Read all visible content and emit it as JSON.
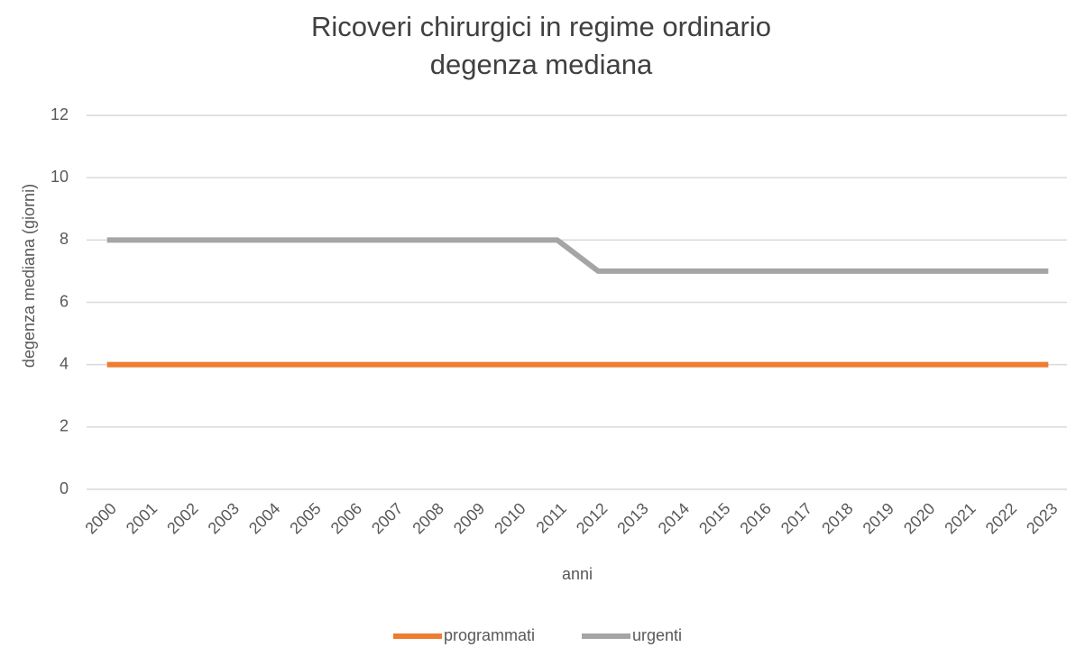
{
  "chart_data": {
    "type": "line",
    "title": "Ricoveri chirurgici in regime ordinario",
    "subtitle": "degenza mediana",
    "x_label": "anni",
    "y_label": "degenza mediana (giorni)",
    "categories": [
      "2000",
      "2001",
      "2002",
      "2003",
      "2004",
      "2005",
      "2006",
      "2007",
      "2008",
      "2009",
      "2010",
      "2011",
      "2012",
      "2013",
      "2014",
      "2015",
      "2016",
      "2017",
      "2018",
      "2019",
      "2020",
      "2021",
      "2022",
      "2023"
    ],
    "series": [
      {
        "name": "programmati",
        "color": "#ed7d31",
        "values": [
          4,
          4,
          4,
          4,
          4,
          4,
          4,
          4,
          4,
          4,
          4,
          4,
          4,
          4,
          4,
          4,
          4,
          4,
          4,
          4,
          4,
          4,
          4,
          4
        ]
      },
      {
        "name": "urgenti",
        "color": "#a5a5a5",
        "values": [
          8,
          8,
          8,
          8,
          8,
          8,
          8,
          8,
          8,
          8,
          8,
          8,
          7,
          7,
          7,
          7,
          7,
          7,
          7,
          7,
          7,
          7,
          7,
          7
        ]
      }
    ],
    "ylim": [
      0,
      12
    ],
    "yticks": [
      0,
      2,
      4,
      6,
      8,
      10,
      12
    ],
    "grid": true,
    "legend": "bottom"
  }
}
